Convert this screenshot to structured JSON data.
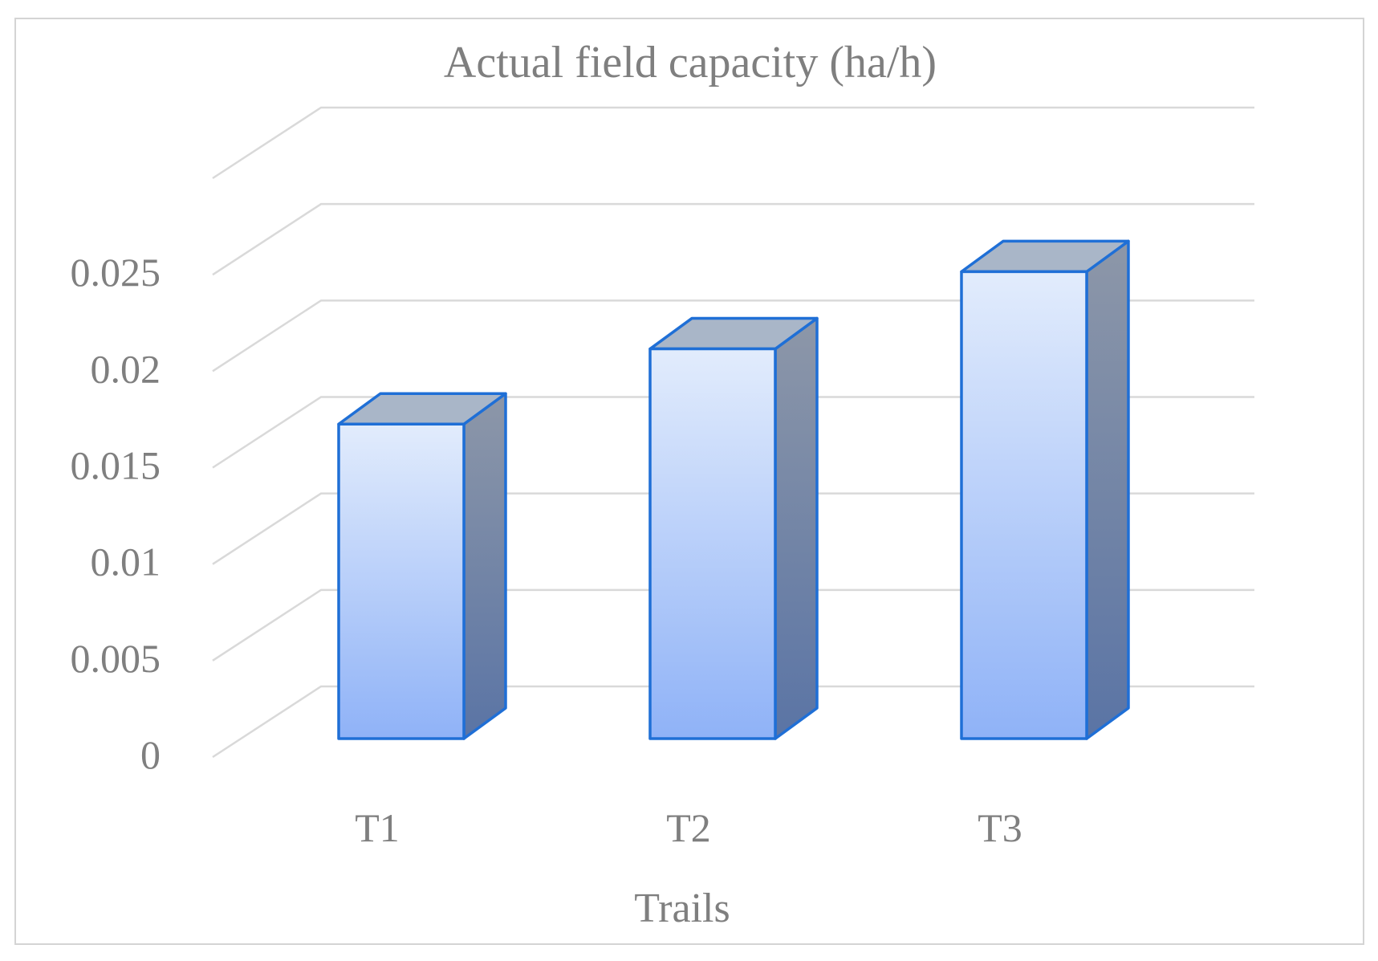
{
  "chart_data": {
    "type": "bar",
    "title": "Actual  field capacity (ha/h)",
    "xlabel": "Trails",
    "ylabel": "",
    "categories": [
      "T1",
      "T2",
      "T3"
    ],
    "values": [
      0.0163,
      0.0202,
      0.0242
    ],
    "ylim": [
      0,
      0.03
    ],
    "ytick_labels": [
      "0",
      "0.005",
      "0.01",
      "0.015",
      "0.02",
      "0.025"
    ],
    "yticks": [
      0,
      0.005,
      0.01,
      0.015,
      0.02,
      0.025
    ],
    "grid": true,
    "legend": "none",
    "style": "3d-column",
    "colors": {
      "bar_front_top": "#e2ecfc",
      "bar_front_bottom": "#8fb2f7",
      "bar_top_face": "#a9b6c8",
      "bar_side_top": "#8d97a8",
      "bar_side_bottom": "#5a74a5",
      "bar_edge": "#1f6fd6",
      "gridline": "#d9d9d9",
      "text": "#7f7f7f"
    }
  }
}
